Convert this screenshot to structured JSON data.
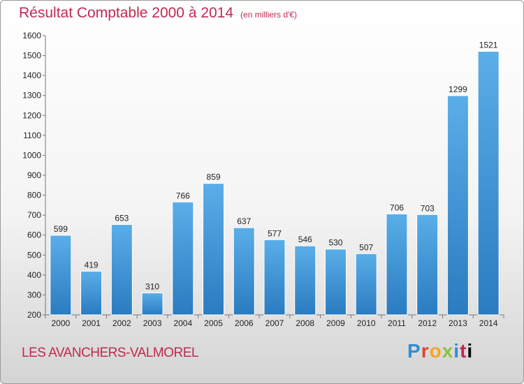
{
  "title": "Résultat Comptable 2000 à 2014",
  "subtitle": "(en milliers d'€)",
  "commune": "LES AVANCHERS-VALMOREL",
  "logo": {
    "letters": [
      "P",
      "r",
      "o",
      "x",
      "i",
      "t",
      "i"
    ]
  },
  "chart_data": {
    "type": "bar",
    "title": "Résultat Comptable 2000 à 2014",
    "subtitle": "(en milliers d'€)",
    "xlabel": "",
    "ylabel": "",
    "categories": [
      "2000",
      "2001",
      "2002",
      "2003",
      "2004",
      "2005",
      "2006",
      "2007",
      "2008",
      "2009",
      "2010",
      "2011",
      "2012",
      "2013",
      "2014"
    ],
    "values": [
      599,
      419,
      653,
      310,
      766,
      859,
      637,
      577,
      546,
      530,
      507,
      706,
      703,
      1299,
      1521
    ],
    "ylim": [
      200,
      1600
    ],
    "yticks": [
      200,
      300,
      400,
      500,
      600,
      700,
      800,
      900,
      1000,
      1100,
      1200,
      1300,
      1400,
      1500,
      1600
    ],
    "grid": false,
    "colors": {
      "bar_top": "#5aaee8",
      "bar_bottom": "#2a7bc0",
      "bar_edge": "#ffffff",
      "axis": "#777777",
      "text": "#222222"
    }
  }
}
